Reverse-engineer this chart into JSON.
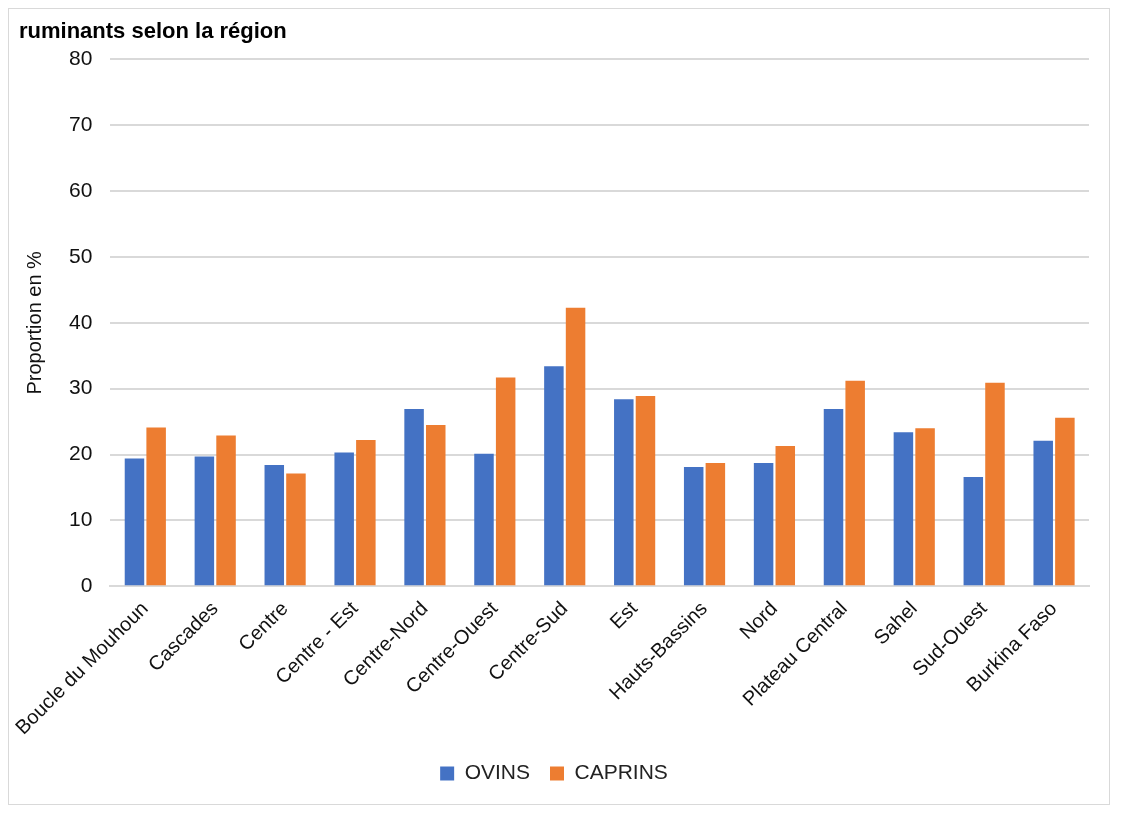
{
  "chart_data": {
    "type": "bar",
    "title": "ruminants selon la région",
    "ylabel": "Proportion en %",
    "categories": [
      "Boucle du Mouhoun",
      "Cascades",
      "Centre",
      "Centre - Est",
      "Centre-Nord",
      "Centre-Ouest",
      "Centre-Sud",
      "Est",
      "Hauts-Bassins",
      "Nord",
      "Plateau Central",
      "Sahel",
      "Sud-Ouest",
      "Burkina Faso"
    ],
    "series": [
      {
        "name": "OVINS",
        "color": "#4472c4",
        "values": [
          19.4,
          19.7,
          18.4,
          20.3,
          26.9,
          20.1,
          33.4,
          28.4,
          18.1,
          18.7,
          26.9,
          23.4,
          16.6,
          22.1
        ]
      },
      {
        "name": "CAPRINS",
        "color": "#ed7d31",
        "values": [
          24.1,
          22.9,
          17.1,
          22.2,
          24.5,
          31.7,
          42.3,
          28.9,
          18.7,
          21.3,
          31.2,
          24.0,
          30.9,
          25.6
        ]
      }
    ],
    "ylim": [
      0,
      80
    ],
    "yticks": [
      0,
      10,
      20,
      30,
      40,
      50,
      60,
      70,
      80
    ],
    "grid": "y",
    "legend": "bottom"
  }
}
